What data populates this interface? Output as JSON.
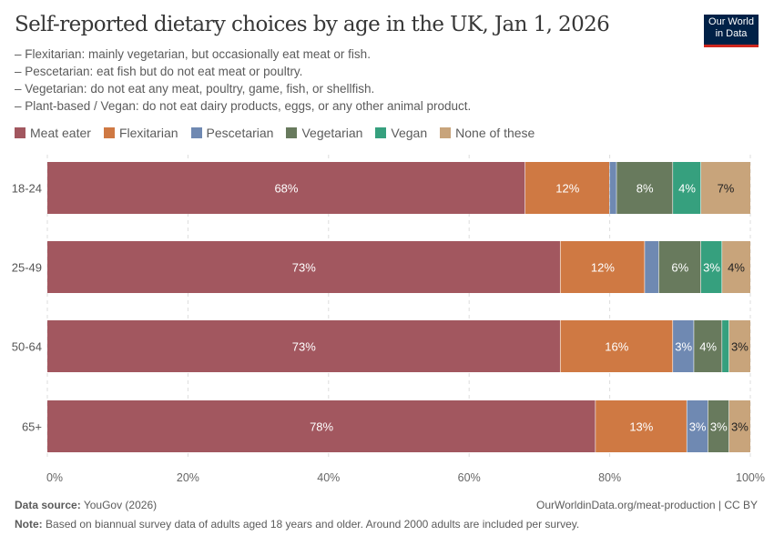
{
  "title": "Self-reported dietary choices by age in the UK, Jan 1, 2026",
  "subtitle": [
    "– Flexitarian: mainly vegetarian, but occasionally eat meat or fish.",
    "– Pescetarian: eat fish but do not eat meat or poultry.",
    "– Vegetarian: do not eat any meat, poultry, game, fish, or shellfish.",
    "– Plant-based / Vegan: do not eat dairy products, eggs, or any other animal product."
  ],
  "logo": "Our World in Data",
  "footer": {
    "source_label": "Data source:",
    "source": "YouGov (2026)",
    "url": "OurWorldinData.org/meat-production | CC BY",
    "note_label": "Note:",
    "note": "Based on biannual survey data of adults aged 18 years and older. Around 2000 adults are included per survey."
  },
  "chart_data": {
    "type": "bar",
    "orientation": "horizontal",
    "stacked": true,
    "categories": [
      "18-24",
      "25-49",
      "50-64",
      "65+"
    ],
    "series": [
      {
        "name": "Meat eater",
        "color": "#a2575f",
        "values": [
          68,
          73,
          73,
          78
        ]
      },
      {
        "name": "Flexitarian",
        "color": "#cf7943",
        "values": [
          12,
          12,
          16,
          13
        ]
      },
      {
        "name": "Pescetarian",
        "color": "#6f89b2",
        "values": [
          1,
          2,
          3,
          3
        ]
      },
      {
        "name": "Vegetarian",
        "color": "#687a5d",
        "values": [
          8,
          6,
          4,
          3
        ]
      },
      {
        "name": "Vegan",
        "color": "#36a07e",
        "values": [
          4,
          3,
          1,
          0
        ]
      },
      {
        "name": "None of these",
        "color": "#c8a47b",
        "values": [
          7,
          4,
          3,
          3
        ]
      }
    ],
    "xlim": [
      0,
      100
    ],
    "xticks": [
      "0%",
      "20%",
      "40%",
      "60%",
      "80%",
      "100%"
    ],
    "grid": "vertical dashed",
    "legend": "top-left"
  }
}
